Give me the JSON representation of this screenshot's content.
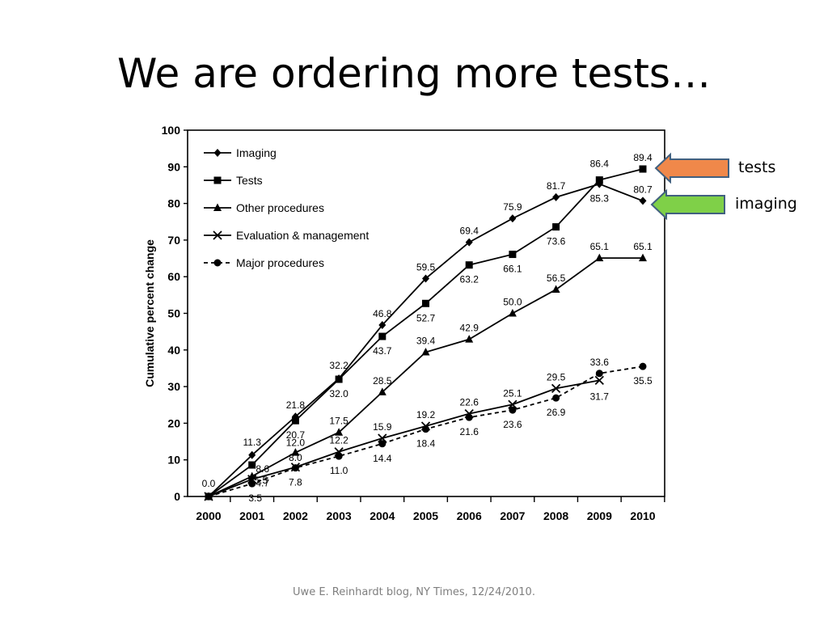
{
  "slide": {
    "title": "We are ordering more tests…",
    "source": "Uwe E. Reinhardt blog, NY Times, 12/24/2010."
  },
  "callouts": [
    {
      "label": "tests",
      "series": "Tests",
      "color": "#f0884a"
    },
    {
      "label": "imaging",
      "series": "Imaging",
      "color": "#7fd048"
    }
  ],
  "chart_data": {
    "type": "line",
    "title": "",
    "xlabel": "",
    "ylabel": "Cumulative percent change",
    "x": [
      "2000",
      "2001",
      "2002",
      "2003",
      "2004",
      "2005",
      "2006",
      "2007",
      "2008",
      "2009",
      "2010"
    ],
    "ylim": [
      0,
      100
    ],
    "yticks": [
      0,
      10,
      20,
      30,
      40,
      50,
      60,
      70,
      80,
      90,
      100
    ],
    "grid": false,
    "legend_position": "top-left",
    "series": [
      {
        "name": "Imaging",
        "marker": "diamond",
        "dashed": false,
        "values": [
          0.0,
          11.3,
          21.8,
          32.2,
          46.8,
          59.5,
          69.4,
          75.9,
          81.7,
          85.3,
          80.7
        ],
        "labels": [
          "0.0",
          "11.3",
          "21.8",
          "32.2",
          "46.8",
          "59.5",
          "69.4",
          "75.9",
          "81.7",
          "85.3",
          "80.7"
        ]
      },
      {
        "name": "Tests",
        "marker": "square",
        "dashed": false,
        "values": [
          0.0,
          8.6,
          20.7,
          32.0,
          43.7,
          52.7,
          63.2,
          66.1,
          73.6,
          86.4,
          89.4
        ],
        "labels": [
          "",
          "8.6",
          "20.7",
          "32.0",
          "43.7",
          "52.7",
          "63.2",
          "66.1",
          "73.6",
          "86.4",
          "89.4"
        ]
      },
      {
        "name": "Other procedures",
        "marker": "triangle",
        "dashed": false,
        "values": [
          0.0,
          5.5,
          12.0,
          17.5,
          28.5,
          39.4,
          42.9,
          50.0,
          56.5,
          65.1,
          65.1
        ],
        "labels": [
          "",
          "5.5",
          "12.0",
          "17.5",
          "28.5",
          "39.4",
          "42.9",
          "50.0",
          "56.5",
          "65.1",
          "65.1"
        ]
      },
      {
        "name": "Evaluation & management",
        "marker": "x",
        "dashed": false,
        "values": [
          0.0,
          4.7,
          8.0,
          12.2,
          15.9,
          19.2,
          22.6,
          25.1,
          29.5,
          31.7,
          null
        ],
        "labels": [
          "",
          "4.7",
          "8.0",
          "12.2",
          "15.9",
          "19.2",
          "22.6",
          "25.1",
          "29.5",
          "31.7",
          ""
        ]
      },
      {
        "name": "Major procedures",
        "marker": "circle",
        "dashed": true,
        "values": [
          0.0,
          3.5,
          7.8,
          11.0,
          14.4,
          18.4,
          21.6,
          23.6,
          26.9,
          33.6,
          35.5
        ],
        "labels": [
          "",
          "3.5",
          "7.8",
          "11.0",
          "14.4",
          "18.4",
          "21.6",
          "23.6",
          "26.9",
          "33.6",
          "35.5"
        ]
      }
    ]
  }
}
